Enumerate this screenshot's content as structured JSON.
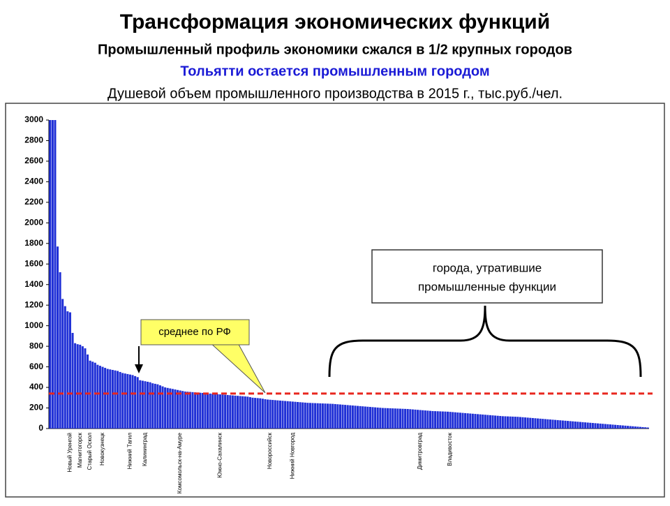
{
  "chart_data": {
    "type": "bar",
    "title": "Трансформация экономических функций",
    "subtitle": "Промышленный профиль экономики сжался в 1/2 крупных городов",
    "highlight": "Тольятти остается промышленным городом",
    "axis_title": "Душевой объем промышленного производства в 2015 г., тыс.руб./чел.",
    "color": "#1f2fd6",
    "ylim": [
      0,
      3000
    ],
    "yticks": [
      0,
      200,
      400,
      600,
      800,
      1000,
      1200,
      1400,
      1600,
      1800,
      2000,
      2200,
      2400,
      2600,
      2800,
      3000
    ],
    "mean_line": {
      "value": 340,
      "label": "среднее по РФ",
      "color": "#e8261e"
    },
    "annotation": [
      "города, утратившие",
      "промышленные функции"
    ],
    "categories": [
      null,
      null,
      null,
      null,
      null,
      null,
      null,
      null,
      "Новый Уренгой",
      null,
      null,
      null,
      "Магнитогорск",
      null,
      null,
      null,
      "Старый Оскол",
      null,
      null,
      null,
      null,
      "Новокузнецк",
      null,
      null,
      null,
      null,
      null,
      null,
      null,
      null,
      null,
      null,
      "Нижний Тагил",
      null,
      null,
      null,
      null,
      null,
      "Калининград",
      null,
      null,
      null,
      null,
      null,
      null,
      null,
      null,
      null,
      null,
      null,
      null,
      null,
      "Комсомольск-на-Амуре",
      null,
      null,
      null,
      null,
      null,
      null,
      null,
      null,
      null,
      null,
      null,
      null,
      null,
      null,
      null,
      "Южно-Сахалинск",
      null,
      null,
      null,
      null,
      null,
      null,
      null,
      null,
      null,
      null,
      null,
      null,
      null,
      null,
      null,
      null,
      null,
      null,
      null,
      "Новороссийск",
      null,
      null,
      null,
      null,
      null,
      null,
      null,
      null,
      "Нижний Новгород",
      null,
      null,
      null,
      null,
      null,
      null,
      null,
      null,
      null,
      null,
      null,
      null,
      null,
      null,
      null,
      null,
      null,
      null,
      null,
      null,
      null,
      null,
      null,
      null,
      null,
      null,
      null,
      null,
      null,
      null,
      null,
      null,
      null,
      null,
      null,
      null,
      null,
      null,
      null,
      null,
      null,
      null,
      null,
      null,
      null,
      null,
      null,
      null,
      null,
      null,
      "Димитровград",
      null,
      null,
      null,
      null,
      null,
      null,
      null,
      null,
      null,
      null,
      null,
      "Владивосток",
      null,
      null,
      null,
      null,
      null,
      null,
      null,
      null,
      null,
      null,
      null,
      null,
      null,
      null,
      null,
      null,
      null,
      null,
      null,
      null,
      null,
      null,
      null,
      null,
      null,
      null,
      null,
      null,
      null,
      null,
      null,
      null,
      null,
      null,
      null,
      null,
      null,
      null,
      null,
      null,
      null,
      null,
      null,
      null,
      null,
      null,
      null,
      null,
      null,
      null,
      null,
      null,
      null,
      null,
      null,
      null,
      null,
      null,
      null,
      null,
      null,
      null,
      null,
      null,
      null,
      null,
      null,
      null,
      null,
      null,
      null,
      null,
      null,
      null,
      null,
      null,
      null,
      null,
      null
    ],
    "values": [
      3000,
      3000,
      3000,
      1770,
      1520,
      1260,
      1190,
      1140,
      1130,
      930,
      830,
      820,
      815,
      800,
      780,
      720,
      660,
      650,
      640,
      620,
      610,
      600,
      590,
      580,
      575,
      570,
      565,
      560,
      550,
      540,
      535,
      530,
      525,
      520,
      510,
      500,
      470,
      465,
      460,
      455,
      450,
      440,
      435,
      430,
      420,
      410,
      400,
      395,
      390,
      385,
      380,
      375,
      370,
      365,
      360,
      358,
      356,
      354,
      352,
      350,
      348,
      346,
      344,
      342,
      340,
      338,
      336,
      334,
      332,
      330,
      328,
      326,
      324,
      322,
      320,
      318,
      316,
      314,
      312,
      310,
      305,
      300,
      298,
      296,
      294,
      290,
      285,
      282,
      280,
      278,
      276,
      274,
      272,
      270,
      268,
      266,
      264,
      262,
      260,
      258,
      256,
      254,
      252,
      250,
      249,
      248,
      247,
      246,
      245,
      244,
      243,
      242,
      241,
      240,
      238,
      236,
      234,
      232,
      230,
      228,
      226,
      224,
      222,
      220,
      218,
      216,
      214,
      212,
      210,
      208,
      206,
      204,
      202,
      200,
      199,
      198,
      197,
      196,
      195,
      194,
      193,
      192,
      191,
      190,
      188,
      186,
      184,
      182,
      180,
      178,
      176,
      174,
      172,
      170,
      169,
      168,
      167,
      166,
      165,
      164,
      162,
      160,
      158,
      156,
      154,
      152,
      150,
      148,
      146,
      144,
      142,
      140,
      138,
      136,
      134,
      132,
      130,
      128,
      126,
      124,
      122,
      120,
      119,
      118,
      117,
      116,
      115,
      114,
      112,
      110,
      108,
      106,
      104,
      102,
      100,
      98,
      96,
      94,
      92,
      90,
      88,
      86,
      84,
      82,
      80,
      78,
      76,
      74,
      72,
      70,
      68,
      66,
      64,
      62,
      60,
      58,
      56,
      54,
      52,
      50,
      48,
      46,
      44,
      42,
      40,
      38,
      36,
      34,
      32,
      30,
      28,
      26,
      24,
      22,
      20,
      18,
      16,
      14,
      12,
      10
    ]
  }
}
